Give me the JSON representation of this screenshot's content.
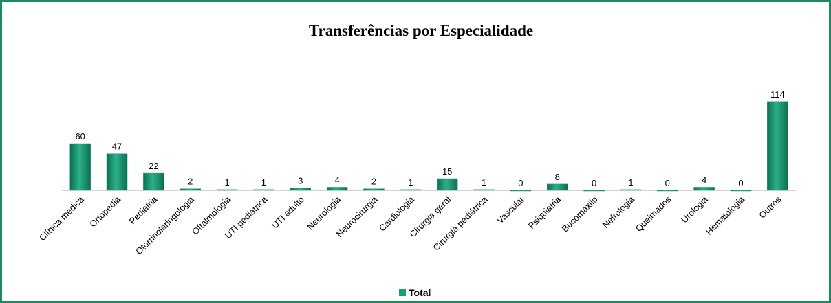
{
  "chart_data": {
    "type": "bar",
    "title": "Transferências por Especialidade",
    "categories": [
      "Clínica médica",
      "Ortopedia",
      "Pediatria",
      "Otorrinolaringologia",
      "Oftalmologia",
      "UTI pediátrica",
      "UTI adulto",
      "Neurologia",
      "Neurocirurgia",
      "Cardiologia",
      "Cirurgia geral",
      "Cirurgia pediátrica",
      "Vascular",
      "Psiquiatria",
      "Bucomaxilo",
      "Nefrologia",
      "Queimados",
      "Urologia",
      "Hematologia",
      "Outros"
    ],
    "series": [
      {
        "name": "Total",
        "color": "#1f9c7a",
        "values": [
          60,
          47,
          22,
          2,
          1,
          1,
          3,
          4,
          2,
          1,
          15,
          1,
          0,
          8,
          0,
          1,
          0,
          4,
          0,
          114
        ]
      }
    ],
    "ylim": [
      0,
      120
    ],
    "legend": "bottom"
  }
}
